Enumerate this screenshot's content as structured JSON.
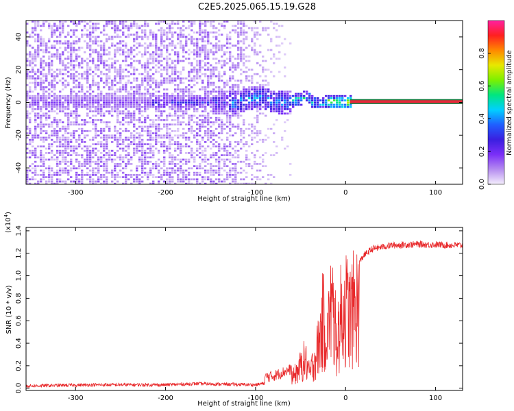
{
  "title": "C2E5.2025.065.15.19.G28",
  "chart_data": [
    {
      "type": "heatmap",
      "xlabel": "Height of straight line (km)",
      "ylabel": "Frequency (Hz)",
      "xlim": [
        -355,
        130
      ],
      "ylim": [
        -50,
        50
      ],
      "x_ticks": [
        -300,
        -200,
        -100,
        0,
        100
      ],
      "y_ticks": [
        -40,
        -20,
        0,
        20,
        40
      ],
      "colorbar": {
        "label": "Normalized spectral amplitude",
        "ticks": [
          "0.0",
          "0.2",
          "0.4",
          "0.6",
          "0.8"
        ],
        "range": [
          0,
          1
        ],
        "colormap": [
          "#f4eefc",
          "#b58cf0",
          "#7b2ff7",
          "#3a1fe0",
          "#1f5fff",
          "#00d0ff",
          "#00e680",
          "#7cf000",
          "#e8e800",
          "#ff8800",
          "#ff2020",
          "#ff20a0"
        ]
      },
      "features": {
        "noise_extent_km": [
          -355,
          -60
        ],
        "signal_band_start_km": -215,
        "signal_line_start_km": 5,
        "signal_line_center_hz": 0.5,
        "signal_line_halfwidth_hz": 1.5,
        "signal_line_color": "#e8283a",
        "signal_line_edge_color": "#1a7a40"
      }
    },
    {
      "type": "line",
      "xlabel": "Height of straight line (km)",
      "ylabel": "SNR (10 * v/v)",
      "scale_label": "(x10",
      "scale_exp": "4",
      "scale_close": ")",
      "xlim": [
        -355,
        130
      ],
      "ylim": [
        -0.02,
        1.43
      ],
      "x_ticks": [
        -300,
        -200,
        -100,
        0,
        100
      ],
      "y_ticks": [
        "0.0",
        "0.2",
        "0.4",
        "0.6",
        "0.8",
        "1.0",
        "1.2",
        "1.4"
      ],
      "series": [
        {
          "color": "#e8282a",
          "key_points": [
            {
              "x": -355,
              "y": 0.02
            },
            {
              "x": -280,
              "y": 0.03
            },
            {
              "x": -200,
              "y": 0.03
            },
            {
              "x": -165,
              "y": 0.04
            },
            {
              "x": -100,
              "y": 0.03
            },
            {
              "x": -80,
              "y": 0.06
            },
            {
              "x": -60,
              "y": 0.12
            },
            {
              "x": -50,
              "y": 0.28
            },
            {
              "x": -45,
              "y": 0.38
            },
            {
              "x": -40,
              "y": 0.18
            },
            {
              "x": -30,
              "y": 0.55
            },
            {
              "x": -25,
              "y": 0.9
            },
            {
              "x": -20,
              "y": 0.7
            },
            {
              "x": -15,
              "y": 1.1
            },
            {
              "x": -10,
              "y": 0.6
            },
            {
              "x": -5,
              "y": 0.95
            },
            {
              "x": 0,
              "y": 1.05
            },
            {
              "x": 5,
              "y": 0.95
            },
            {
              "x": 10,
              "y": 1.05
            },
            {
              "x": 20,
              "y": 1.18
            },
            {
              "x": 30,
              "y": 1.24
            },
            {
              "x": 50,
              "y": 1.27
            },
            {
              "x": 80,
              "y": 1.28
            },
            {
              "x": 130,
              "y": 1.27
            }
          ]
        }
      ]
    }
  ]
}
